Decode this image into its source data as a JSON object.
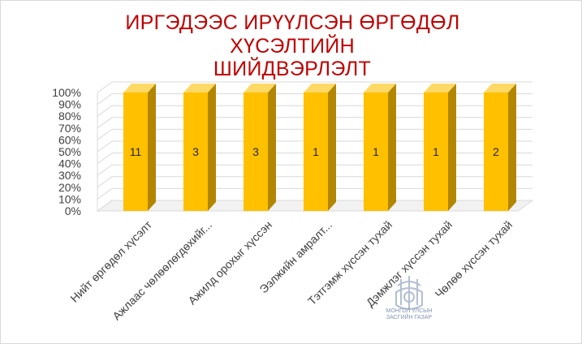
{
  "title": {
    "prefix": "",
    "line1": "ИРГЭДЭЭС ИРҮҮЛСЭН ӨРГӨДӨЛ ХҮСЭЛТИЙН",
    "line2": "ШИЙДВЭРЛЭЛТ"
  },
  "watermark": {
    "line1": "МОНГОЛ УЛСЫН",
    "line2": "ЗАСГИЙН ГАЗАР"
  },
  "colors": {
    "title": "#c00000",
    "bar_front": "#ffc000",
    "bar_side": "#b38600",
    "bar_top": "#ffd966",
    "grid": "#d9d9d9"
  },
  "chart_data": {
    "type": "bar",
    "categories": [
      "Нийт өргөдөл хүсэлт",
      "Ажлаас чөлөөлөгдөхийг...",
      "Ажилд орохыг хүссэн",
      "Ээлжийн амралт...",
      "Тэтгэмж хүссэн тухай",
      "Дэмжлэг хүссэн тухай",
      "Чөлөө хүссэн тухай"
    ],
    "values": [
      100,
      100,
      100,
      100,
      100,
      100,
      100
    ],
    "data_labels": [
      "11",
      "3",
      "3",
      "1",
      "1",
      "1",
      "2"
    ],
    "yticks": [
      "0%",
      "10%",
      "20%",
      "30%",
      "40%",
      "50%",
      "60%",
      "70%",
      "80%",
      "90%",
      "100%"
    ],
    "ylim": [
      0,
      100
    ],
    "grid": true,
    "style": "3d-column"
  }
}
